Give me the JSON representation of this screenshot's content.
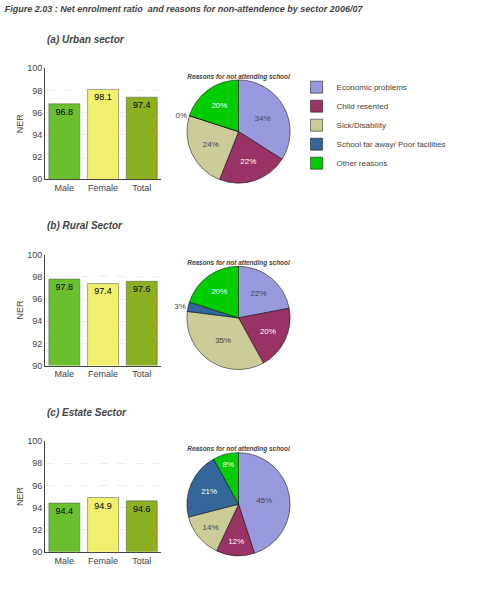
{
  "title": "Figure 2.03 : Net enrolment ratio  and reasons for non-attendence by sector 2006/07",
  "chart_data": [
    {
      "type": "bar",
      "title": "(a) Urban sector",
      "ylabel": "NER",
      "categories": [
        "Male",
        "Female",
        "Total"
      ],
      "values": [
        96.8,
        98.1,
        97.4
      ],
      "colors": [
        "#6abf2e",
        "#f0f06e",
        "#8db020"
      ],
      "ylim": [
        90,
        100
      ],
      "yticks": [
        90,
        92,
        94,
        96,
        98,
        100
      ],
      "grid": true,
      "data_labels": true
    },
    {
      "type": "pie",
      "title": "Reasons for not attending school",
      "categories": [
        "Economic problems",
        "Child resented",
        "Sick/Disability",
        "School far away/ Poor facilities",
        "Other reasons"
      ],
      "values": [
        34,
        22,
        24,
        0,
        20
      ],
      "value_labels": [
        "34%",
        "22%",
        "24%",
        "0%",
        "20%"
      ],
      "colors": [
        "#9999dd",
        "#993366",
        "#cccc99",
        "#336699",
        "#00cc00"
      ],
      "data_labels": true,
      "legend": "right"
    },
    {
      "type": "bar",
      "title": "(b) Rural Sector",
      "ylabel": "NER",
      "categories": [
        "Male",
        "Female",
        "Total"
      ],
      "values": [
        97.8,
        97.4,
        97.6
      ],
      "colors": [
        "#6abf2e",
        "#f0f06e",
        "#8db020"
      ],
      "ylim": [
        90,
        100
      ],
      "yticks": [
        90,
        92,
        94,
        96,
        98,
        100
      ],
      "grid": true,
      "data_labels": true
    },
    {
      "type": "pie",
      "title": "Reasons for not attending school",
      "categories": [
        "Economic problems",
        "Child resented",
        "Sick/Disability",
        "School far away/ Poor facilities",
        "Other reasons"
      ],
      "values": [
        22,
        20,
        35,
        3,
        20
      ],
      "value_labels": [
        "22%",
        "20%",
        "35%",
        "3%",
        "20%"
      ],
      "colors": [
        "#9999dd",
        "#993366",
        "#cccc99",
        "#336699",
        "#00cc00"
      ],
      "data_labels": true,
      "legend": "right"
    },
    {
      "type": "bar",
      "title": "(c) Estate Sector",
      "ylabel": "NER",
      "categories": [
        "Male",
        "Female",
        "Total"
      ],
      "values": [
        94.4,
        94.9,
        94.6
      ],
      "colors": [
        "#6abf2e",
        "#f0f06e",
        "#8db020"
      ],
      "ylim": [
        90,
        100
      ],
      "yticks": [
        90,
        92,
        94,
        96,
        98,
        100
      ],
      "grid": true,
      "data_labels": true
    },
    {
      "type": "pie",
      "title": "Reasons for not attending school",
      "categories": [
        "Economic problems",
        "Child resented",
        "Sick/Disability",
        "School far away/ Poor facilities",
        "Other reasons"
      ],
      "values": [
        45,
        12,
        14,
        21,
        8
      ],
      "value_labels": [
        "45%",
        "12%",
        "14%",
        "21%",
        "8%"
      ],
      "colors": [
        "#9999dd",
        "#993366",
        "#cccc99",
        "#336699",
        "#00cc00"
      ],
      "data_labels": true,
      "legend": "right"
    }
  ]
}
